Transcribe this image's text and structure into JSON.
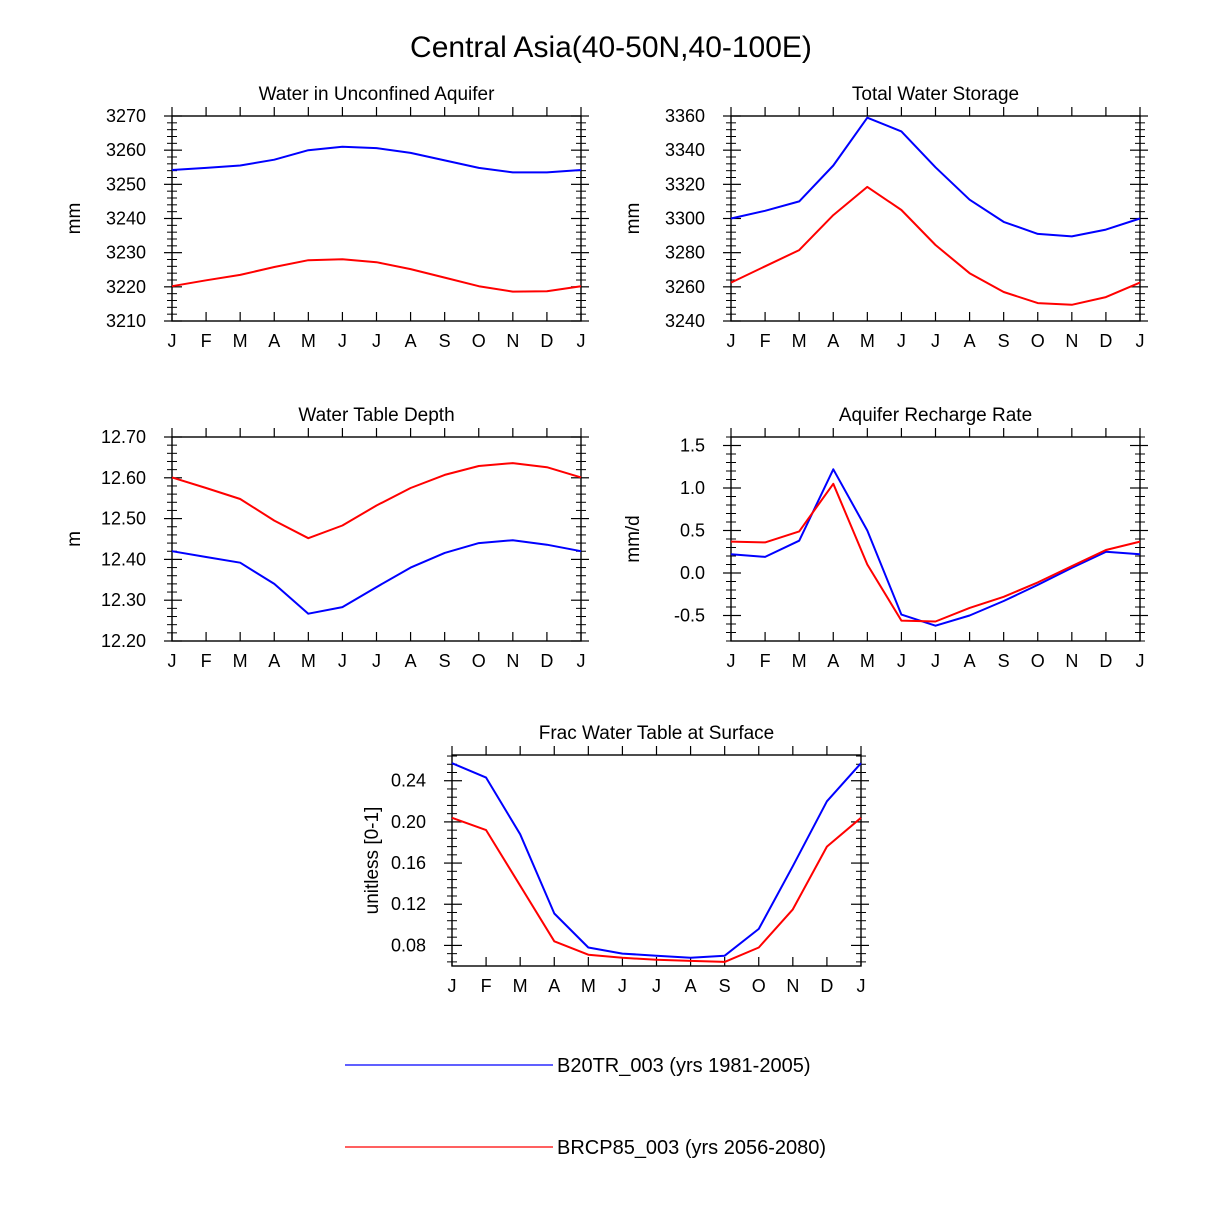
{
  "figure": {
    "title": "Central Asia(40-50N,40-100E)"
  },
  "months": [
    "J",
    "F",
    "M",
    "A",
    "M",
    "J",
    "J",
    "A",
    "S",
    "O",
    "N",
    "D",
    "J"
  ],
  "series_meta": [
    {
      "name": "B20TR_003 (yrs 1981-2005)",
      "color": "#0000ff"
    },
    {
      "name": "BRCP85_003 (yrs 2056-2080)",
      "color": "#ff0000"
    }
  ],
  "chart_data": [
    {
      "type": "line",
      "title": "Water in Unconfined Aquifer",
      "xlabel": "",
      "ylabel": "mm",
      "ylim": [
        3210,
        3270
      ],
      "yticks": [
        3210,
        3220,
        3230,
        3240,
        3250,
        3260,
        3270
      ],
      "yticklabels": [
        "3210",
        "3220",
        "3230",
        "3240",
        "3250",
        "3260",
        "3270"
      ],
      "categories": [
        "J",
        "F",
        "M",
        "A",
        "M",
        "J",
        "J",
        "A",
        "S",
        "O",
        "N",
        "D",
        "J"
      ],
      "series": [
        {
          "name": "B20TR_003 (yrs 1981-2005)",
          "values": [
            3254.2,
            3254.8,
            3255.5,
            3257.2,
            3260.0,
            3261.0,
            3260.6,
            3259.2,
            3257.0,
            3254.8,
            3253.5,
            3253.5,
            3254.2
          ]
        },
        {
          "name": "BRCP85_003 (yrs 2056-2080)",
          "values": [
            3220.2,
            3221.9,
            3223.5,
            3225.8,
            3227.8,
            3228.1,
            3227.2,
            3225.2,
            3222.7,
            3220.2,
            3218.6,
            3218.7,
            3220.2
          ]
        }
      ]
    },
    {
      "type": "line",
      "title": "Total Water Storage",
      "xlabel": "",
      "ylabel": "mm",
      "ylim": [
        3240,
        3360
      ],
      "yticks": [
        3240,
        3260,
        3280,
        3300,
        3320,
        3340,
        3360
      ],
      "yticklabels": [
        "3240",
        "3260",
        "3280",
        "3300",
        "3320",
        "3340",
        "3360"
      ],
      "categories": [
        "J",
        "F",
        "M",
        "A",
        "M",
        "J",
        "J",
        "A",
        "S",
        "O",
        "N",
        "D",
        "J"
      ],
      "series": [
        {
          "name": "B20TR_003 (yrs 1981-2005)",
          "values": [
            3300,
            3304.5,
            3310,
            3331,
            3359,
            3351,
            3330,
            3311,
            3298,
            3291,
            3289.5,
            3293.5,
            3300
          ]
        },
        {
          "name": "BRCP85_003 (yrs 2056-2080)",
          "values": [
            3262.5,
            3272,
            3281.5,
            3302,
            3318.5,
            3305,
            3284.5,
            3268,
            3257,
            3250.5,
            3249.5,
            3254,
            3262.5
          ]
        }
      ]
    },
    {
      "type": "line",
      "title": "Water Table Depth",
      "xlabel": "",
      "ylabel": "m",
      "ylim": [
        12.2,
        12.7
      ],
      "yticks": [
        12.2,
        12.3,
        12.4,
        12.5,
        12.6,
        12.7
      ],
      "yticklabels": [
        "12.20",
        "12.30",
        "12.40",
        "12.50",
        "12.60",
        "12.70"
      ],
      "categories": [
        "J",
        "F",
        "M",
        "A",
        "M",
        "J",
        "J",
        "A",
        "S",
        "O",
        "N",
        "D",
        "J"
      ],
      "series": [
        {
          "name": "B20TR_003 (yrs 1981-2005)",
          "values": [
            12.42,
            12.406,
            12.392,
            12.34,
            12.267,
            12.283,
            12.332,
            12.38,
            12.416,
            12.44,
            12.447,
            12.436,
            12.42
          ]
        },
        {
          "name": "BRCP85_003 (yrs 2056-2080)",
          "values": [
            12.601,
            12.575,
            12.548,
            12.495,
            12.452,
            12.483,
            12.532,
            12.575,
            12.607,
            12.629,
            12.636,
            12.626,
            12.601
          ]
        }
      ]
    },
    {
      "type": "line",
      "title": "Aquifer Recharge Rate",
      "xlabel": "",
      "ylabel": "mm/d",
      "ylim": [
        -0.8,
        1.6
      ],
      "yticks": [
        -0.5,
        0.0,
        0.5,
        1.0,
        1.5
      ],
      "yticklabels": [
        "-0.5",
        "0.0",
        "0.5",
        "1.0",
        "1.5"
      ],
      "categories": [
        "J",
        "F",
        "M",
        "A",
        "M",
        "J",
        "J",
        "A",
        "S",
        "O",
        "N",
        "D",
        "J"
      ],
      "series": [
        {
          "name": "B20TR_003 (yrs 1981-2005)",
          "values": [
            0.22,
            0.19,
            0.38,
            1.22,
            0.5,
            -0.49,
            -0.62,
            -0.5,
            -0.33,
            -0.14,
            0.06,
            0.25,
            0.22
          ]
        },
        {
          "name": "BRCP85_003 (yrs 2056-2080)",
          "values": [
            0.37,
            0.36,
            0.49,
            1.05,
            0.1,
            -0.56,
            -0.57,
            -0.41,
            -0.28,
            -0.11,
            0.08,
            0.27,
            0.37
          ]
        }
      ]
    },
    {
      "type": "line",
      "title": "Frac Water Table at Surface",
      "xlabel": "",
      "ylabel": "unitless [0-1]",
      "ylim": [
        0.06,
        0.265
      ],
      "yticks": [
        0.08,
        0.12,
        0.16,
        0.2,
        0.24
      ],
      "yticklabels": [
        "0.08",
        "0.12",
        "0.16",
        "0.20",
        "0.24"
      ],
      "categories": [
        "J",
        "F",
        "M",
        "A",
        "M",
        "J",
        "J",
        "A",
        "S",
        "O",
        "N",
        "D",
        "J"
      ],
      "series": [
        {
          "name": "B20TR_003 (yrs 1981-2005)",
          "values": [
            0.257,
            0.243,
            0.188,
            0.111,
            0.078,
            0.072,
            0.07,
            0.068,
            0.07,
            0.096,
            0.157,
            0.22,
            0.257
          ]
        },
        {
          "name": "BRCP85_003 (yrs 2056-2080)",
          "values": [
            0.204,
            0.192,
            0.138,
            0.084,
            0.071,
            0.068,
            0.066,
            0.065,
            0.064,
            0.078,
            0.115,
            0.176,
            0.204
          ]
        }
      ]
    }
  ]
}
